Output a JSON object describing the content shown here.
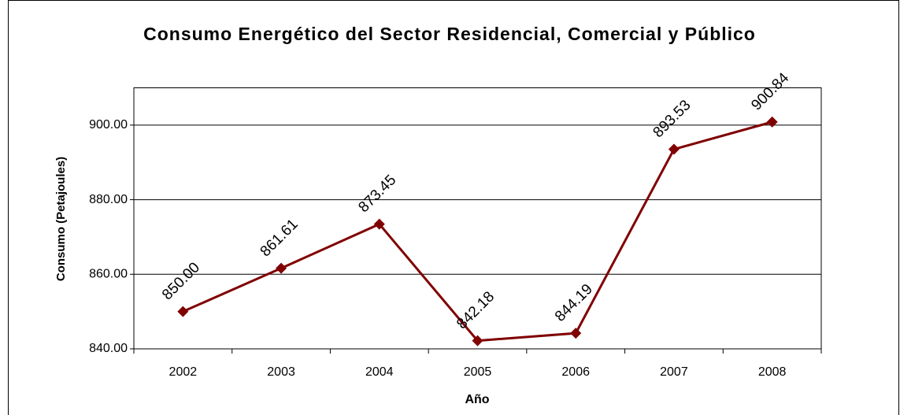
{
  "chart_data": {
    "type": "line",
    "title": "Consumo Energético del Sector Residencial, Comercial y Público",
    "x_label": "Año",
    "y_label": "Consumo (Petajoules)",
    "categories": [
      "2002",
      "2003",
      "2004",
      "2005",
      "2006",
      "2007",
      "2008"
    ],
    "series": [
      {
        "name": "Consumo",
        "color": "#800000",
        "values": [
          850.0,
          861.61,
          873.45,
          842.18,
          844.19,
          893.53,
          900.84
        ],
        "value_labels": [
          "850.00",
          "861.61",
          "873.45",
          "842.18",
          "844.19",
          "893.53",
          "900.84"
        ]
      }
    ],
    "ylim": [
      840,
      910
    ],
    "yticks": [
      {
        "value": 840,
        "label": "840.00"
      },
      {
        "value": 860,
        "label": "860.00"
      },
      {
        "value": 880,
        "label": "880.00"
      },
      {
        "value": 900,
        "label": "900.00"
      }
    ],
    "grid": true
  }
}
